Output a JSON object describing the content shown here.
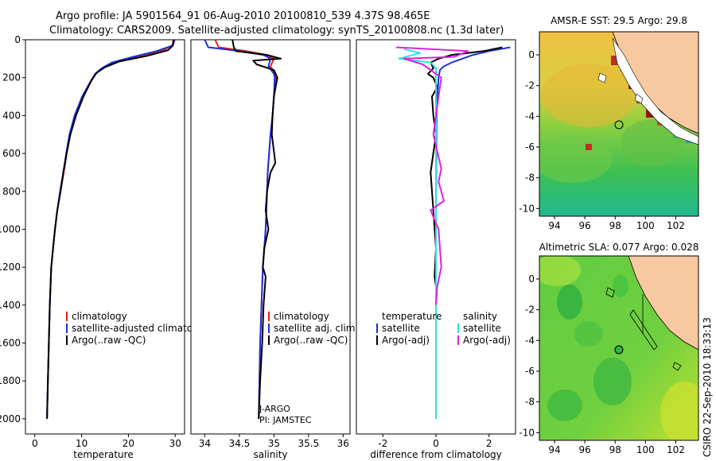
{
  "header": {
    "line1": "Argo profile: JA 5901564_91 06-Aug-2010 20100810_539 4.37S 98.465E",
    "line2": "Climatology: CARS2009. Satellite-adjusted climatology: synTS_20100808.nc (1.3d later)"
  },
  "side_label": "CSIRO 22-Sep-2010 18:33:13",
  "colors": {
    "red": "#e8201a",
    "blue": "#1a30e0",
    "black": "#000000",
    "cyan": "#30e0e0",
    "magenta": "#e020e0",
    "land": "#f8c8a0"
  },
  "chart_data": [
    {
      "type": "line",
      "xlabel": "temperature",
      "xlim": [
        -2,
        32
      ],
      "ylim": [
        2080,
        0
      ],
      "xticks": [
        0,
        10,
        20,
        30
      ],
      "xtick_labels": [
        "0",
        "10",
        "20",
        "30"
      ],
      "yticks": [
        0,
        200,
        400,
        600,
        800,
        1000,
        1200,
        1400,
        1600,
        1800,
        2000
      ],
      "ytick_labels": [
        "0",
        "200",
        "400",
        "600",
        "800",
        "1000",
        "1200",
        "1400",
        "1600",
        "1800",
        "2000"
      ],
      "legend": [
        "climatology",
        "satellite-adjusted climatology",
        "Argo(..raw -QC)"
      ],
      "series": [
        {
          "name": "climatology",
          "color": "red",
          "x": [
            29.6,
            29.4,
            27,
            22,
            17,
            14.5,
            13,
            12,
            10.2,
            8.6,
            7.5,
            6.8,
            6.2,
            5.5,
            4.8,
            4.3,
            3.9,
            3.5,
            3.2,
            3.0,
            2.8,
            2.6
          ],
          "y": [
            0,
            30,
            60,
            90,
            120,
            150,
            180,
            220,
            300,
            400,
            500,
            600,
            700,
            800,
            900,
            1000,
            1100,
            1200,
            1400,
            1600,
            1800,
            2000
          ]
        },
        {
          "name": "satellite-adjusted climatology",
          "color": "blue",
          "x": [
            29.9,
            29.5,
            26,
            21,
            16.5,
            14.3,
            12.9,
            11.9,
            10.1,
            8.5,
            7.4,
            6.7,
            6.1,
            5.4,
            4.8,
            4.3,
            3.9,
            3.5,
            3.2,
            3.0,
            2.8,
            2.6
          ],
          "y": [
            0,
            30,
            60,
            90,
            120,
            150,
            180,
            220,
            300,
            400,
            500,
            600,
            700,
            800,
            900,
            1000,
            1100,
            1200,
            1400,
            1600,
            1800,
            2000
          ]
        },
        {
          "name": "Argo(..raw -QC)",
          "color": "black",
          "x": [
            29.7,
            29.5,
            28.5,
            24,
            18,
            15,
            13.2,
            12.1,
            10.4,
            8.8,
            7.6,
            6.8,
            6.1,
            5.5,
            4.8,
            4.3,
            3.9,
            3.5,
            3.2,
            3.0,
            2.8,
            2.6
          ],
          "y": [
            0,
            30,
            55,
            85,
            115,
            145,
            175,
            215,
            300,
            400,
            500,
            600,
            700,
            800,
            900,
            1000,
            1100,
            1200,
            1400,
            1600,
            1800,
            2000
          ]
        }
      ]
    },
    {
      "type": "line",
      "xlabel": "salinity",
      "xlim": [
        33.8,
        36.1
      ],
      "ylim": [
        2080,
        0
      ],
      "xticks": [
        34,
        34.5,
        35,
        35.5,
        36
      ],
      "xtick_labels": [
        "34",
        "34.5",
        "35",
        "35.5",
        "36"
      ],
      "legend": [
        "climatology",
        "satellite adj. clim.",
        "Argo(..raw -QC)"
      ],
      "annotations": [
        "J-ARGO",
        "PI: JAMSTEC"
      ],
      "series": [
        {
          "name": "climatology",
          "color": "red",
          "x": [
            34.15,
            34.2,
            34.6,
            34.9,
            35.0,
            34.95,
            35.02,
            35.03,
            35.0,
            34.98,
            34.95,
            34.93,
            34.91,
            34.9,
            34.89,
            34.88,
            34.86,
            34.84,
            34.82,
            34.8,
            34.79,
            34.78
          ],
          "y": [
            0,
            40,
            60,
            80,
            100,
            140,
            180,
            200,
            300,
            400,
            500,
            600,
            700,
            800,
            900,
            1000,
            1100,
            1200,
            1400,
            1600,
            1800,
            2000
          ]
        },
        {
          "name": "satellite adj. clim.",
          "color": "blue",
          "x": [
            34.0,
            34.05,
            34.5,
            34.85,
            34.95,
            34.92,
            35.0,
            35.01,
            35.0,
            34.98,
            34.95,
            34.93,
            34.91,
            34.9,
            34.89,
            34.88,
            34.86,
            34.84,
            34.82,
            34.8,
            34.79,
            34.78
          ],
          "y": [
            0,
            40,
            60,
            80,
            100,
            140,
            180,
            200,
            300,
            400,
            500,
            600,
            700,
            800,
            900,
            1000,
            1100,
            1200,
            1400,
            1600,
            1800,
            2000
          ]
        },
        {
          "name": "Argo(..raw -QC)",
          "color": "black",
          "x": [
            34.4,
            34.42,
            34.45,
            34.9,
            35.1,
            34.7,
            34.75,
            35.0,
            35.05,
            35.0,
            34.98,
            34.97,
            35.02,
            34.95,
            34.9,
            34.88,
            34.92,
            34.86,
            34.84,
            34.88,
            34.85,
            34.83,
            34.8,
            34.79,
            34.78
          ],
          "y": [
            0,
            40,
            60,
            80,
            100,
            110,
            130,
            160,
            200,
            300,
            400,
            500,
            650,
            700,
            800,
            900,
            1000,
            1100,
            1200,
            1250,
            1400,
            1600,
            1800,
            1900,
            2000
          ]
        }
      ]
    },
    {
      "type": "line",
      "xlabel": "difference from climatology",
      "xlim": [
        -3,
        3
      ],
      "ylim": [
        2080,
        0
      ],
      "xticks": [
        -2,
        0,
        2
      ],
      "xtick_labels": [
        "-2",
        "0",
        "2"
      ],
      "legend_headers": [
        "temperature",
        "salinity"
      ],
      "legend": [
        "satellite",
        "Argo(-adj)",
        "satellite",
        "Argo(-adj)"
      ],
      "series": [
        {
          "name": "temperature satellite",
          "color": "blue",
          "x": [
            2.8,
            2.0,
            1.4,
            1.0,
            0.6,
            0.3,
            0.15,
            0.1,
            0.05,
            0.02,
            0,
            0
          ],
          "y": [
            40,
            60,
            80,
            100,
            120,
            140,
            160,
            200,
            300,
            400,
            1000,
            2000
          ]
        },
        {
          "name": "temperature Argo(-adj)",
          "color": "black",
          "x": [
            2.5,
            1.8,
            0.6,
            0.1,
            -0.2,
            -0.1,
            -0.3,
            -0.1,
            0.05,
            -0.15,
            -0.1,
            0,
            -0.2,
            -0.1,
            0,
            -0.05,
            0
          ],
          "y": [
            40,
            60,
            80,
            100,
            120,
            150,
            180,
            200,
            250,
            300,
            400,
            500,
            700,
            900,
            1100,
            1250,
            1300
          ]
        },
        {
          "name": "salinity satellite",
          "color": "cyan",
          "x": [
            -1.2,
            -0.6,
            -1.4,
            -0.2,
            0,
            0,
            0,
            0
          ],
          "y": [
            50,
            70,
            100,
            120,
            150,
            300,
            1000,
            2000
          ]
        },
        {
          "name": "salinity Argo(-adj)",
          "color": "magenta",
          "x": [
            -1.5,
            1.2,
            0.7,
            -1.2,
            -0.5,
            0.2,
            0.1,
            0,
            -0.1,
            0.2,
            0.1,
            0.3,
            -0.2,
            0.1,
            0.15,
            0.2,
            0.05,
            0
          ],
          "y": [
            40,
            60,
            90,
            100,
            130,
            200,
            300,
            400,
            500,
            680,
            750,
            850,
            900,
            1000,
            1100,
            1200,
            1300,
            1400
          ]
        }
      ]
    },
    {
      "type": "heatmap",
      "title": "AMSR-E SST: 29.5 Argo: 29.8",
      "xlim": [
        93,
        103.5
      ],
      "ylim": [
        -10.5,
        1.5
      ],
      "xticks": [
        94,
        96,
        98,
        100,
        102
      ],
      "xtick_labels": [
        "94",
        "96",
        "98",
        "100",
        "102"
      ],
      "yticks": [
        0,
        -2,
        -4,
        -6,
        -8,
        -10
      ],
      "ytick_labels": [
        "0",
        "-2",
        "-4",
        "-6",
        "-8",
        "-10"
      ],
      "argo_position": {
        "lon": 98.465,
        "lat": -4.37
      }
    },
    {
      "type": "heatmap",
      "title": "Altimetric SLA: 0.077 Argo: 0.028",
      "xlim": [
        93,
        103.5
      ],
      "ylim": [
        -10.5,
        1.5
      ],
      "xticks": [
        94,
        96,
        98,
        100,
        102
      ],
      "xtick_labels": [
        "94",
        "96",
        "98",
        "100",
        "102"
      ],
      "yticks": [
        0,
        -2,
        -4,
        -6,
        -8,
        -10
      ],
      "ytick_labels": [
        "0",
        "-2",
        "-4",
        "-6",
        "-8",
        "-10"
      ],
      "argo_position": {
        "lon": 98.465,
        "lat": -4.37
      }
    }
  ]
}
